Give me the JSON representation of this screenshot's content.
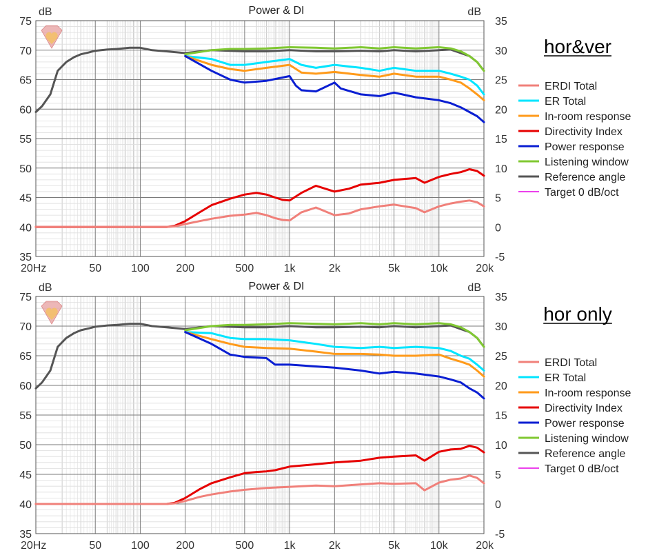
{
  "colors": {
    "ERDI Total": "#f0807a",
    "ER Total": "#00e5ff",
    "In-room response": "#ff9a1a",
    "Directivity Index": "#e60000",
    "Power response": "#0a1ed2",
    "Listening window": "#80c832",
    "Reference angle": "#555555",
    "Target 0 dB/oct": "#e600e6",
    "grid_major": "#7a7a7a",
    "grid_minor": "#cccccc",
    "underline": "#000000",
    "logo": "#e8a0a0"
  },
  "icons": {
    "logo": "heart-diamond-logo-icon"
  },
  "chart_data": [
    {
      "type": "line",
      "title": "Power & DI",
      "panel_label": "hor&ver",
      "y_unit_left": "dB",
      "y_unit_right": "dB",
      "xscale": "log",
      "xlim": [
        20,
        20000
      ],
      "ylim_left": [
        35,
        75
      ],
      "ylim_right": [
        -5,
        35
      ],
      "x_tick_labels": [
        "20Hz",
        "50",
        "100",
        "200",
        "500",
        "1k",
        "2k",
        "5k",
        "10k",
        "20k"
      ],
      "x_tick_values": [
        20,
        50,
        100,
        200,
        500,
        1000,
        2000,
        5000,
        10000,
        20000
      ],
      "y_left_ticks": [
        35,
        40,
        45,
        50,
        55,
        60,
        65,
        70,
        75
      ],
      "y_right_ticks": [
        -5,
        0,
        5,
        10,
        15,
        20,
        25,
        30,
        35
      ],
      "grid": true,
      "legend_position": "right",
      "legend": [
        "ERDI Total",
        "ER Total",
        "In-room response",
        "Directivity Index",
        "Power response",
        "Listening window",
        "Reference angle",
        "Target 0 dB/oct"
      ],
      "series": [
        {
          "name": "Reference angle",
          "axis": "left",
          "x": [
            20,
            22,
            25,
            28,
            32,
            36,
            40,
            45,
            50,
            60,
            70,
            85,
            100,
            120,
            150,
            200,
            300,
            500,
            700,
            1000,
            1500,
            2000,
            3000,
            4000,
            5000,
            7000,
            10000,
            12000,
            14000,
            16000,
            18000,
            20000
          ],
          "y": [
            59.5,
            60.5,
            62.5,
            66.5,
            68,
            68.8,
            69.3,
            69.6,
            69.9,
            70.1,
            70.2,
            70.4,
            70.4,
            70,
            69.8,
            69.5,
            70,
            69.8,
            69.8,
            70,
            69.8,
            69.8,
            69.9,
            69.8,
            70,
            69.8,
            70,
            70.1,
            69.5,
            69,
            68,
            66.5
          ]
        },
        {
          "name": "Listening window",
          "axis": "left",
          "x": [
            200,
            300,
            400,
            500,
            700,
            1000,
            1500,
            2000,
            3000,
            4000,
            5000,
            7000,
            10000,
            12000,
            14000,
            16000,
            18000,
            20000
          ],
          "y": [
            69.3,
            70,
            70.2,
            70.2,
            70.3,
            70.5,
            70.4,
            70.3,
            70.5,
            70.3,
            70.5,
            70.3,
            70.5,
            70.3,
            69.8,
            69,
            68,
            66.5
          ]
        },
        {
          "name": "ER Total",
          "axis": "left",
          "x": [
            200,
            300,
            400,
            500,
            700,
            1000,
            1200,
            1500,
            2000,
            3000,
            4000,
            5000,
            7000,
            10000,
            12000,
            14000,
            16000,
            18000,
            20000
          ],
          "y": [
            69,
            68.5,
            67.5,
            67.5,
            68,
            68.5,
            67.5,
            67,
            67.5,
            67,
            66.5,
            67,
            66.5,
            66.5,
            66,
            65.5,
            65,
            64,
            62.5
          ]
        },
        {
          "name": "In-room response",
          "axis": "left",
          "x": [
            200,
            300,
            400,
            500,
            700,
            1000,
            1200,
            1500,
            2000,
            3000,
            4000,
            5000,
            7000,
            10000,
            12000,
            14000,
            16000,
            18000,
            20000
          ],
          "y": [
            69,
            67.5,
            66.8,
            66.5,
            67,
            67.5,
            66.2,
            66,
            66.3,
            65.8,
            65.5,
            66,
            65.5,
            65.5,
            65,
            64.5,
            63.5,
            62.5,
            61.5
          ]
        },
        {
          "name": "Power response",
          "axis": "left",
          "x": [
            200,
            300,
            400,
            500,
            700,
            1000,
            1100,
            1200,
            1500,
            2000,
            2200,
            3000,
            4000,
            5000,
            7000,
            10000,
            12000,
            14000,
            16000,
            18000,
            20000
          ],
          "y": [
            69,
            66.5,
            65,
            64.5,
            64.8,
            65.6,
            64,
            63.2,
            63,
            64.5,
            63.5,
            62.5,
            62.2,
            62.8,
            62,
            61.5,
            61,
            60.3,
            59.5,
            58.8,
            57.8
          ]
        },
        {
          "name": "Directivity Index",
          "axis": "right",
          "x": [
            20,
            50,
            100,
            150,
            170,
            200,
            250,
            300,
            400,
            500,
            600,
            700,
            800,
            900,
            1000,
            1200,
            1500,
            2000,
            2500,
            3000,
            4000,
            5000,
            7000,
            8000,
            10000,
            12000,
            14000,
            16000,
            18000,
            20000
          ],
          "y": [
            0,
            0,
            0,
            0,
            0.2,
            1,
            2.5,
            3.7,
            4.8,
            5.5,
            5.8,
            5.5,
            5,
            4.6,
            4.5,
            5.8,
            7,
            6,
            6.5,
            7.2,
            7.5,
            8,
            8.3,
            7.5,
            8.5,
            9,
            9.3,
            9.8,
            9.5,
            8.7
          ]
        },
        {
          "name": "ERDI Total",
          "axis": "right",
          "x": [
            20,
            50,
            100,
            150,
            170,
            200,
            250,
            300,
            400,
            500,
            600,
            700,
            800,
            900,
            1000,
            1200,
            1500,
            2000,
            2500,
            3000,
            4000,
            5000,
            7000,
            8000,
            10000,
            12000,
            14000,
            16000,
            18000,
            20000
          ],
          "y": [
            0,
            0,
            0,
            0,
            0.1,
            0.5,
            1,
            1.4,
            1.9,
            2.1,
            2.4,
            2.0,
            1.5,
            1.2,
            1.1,
            2.5,
            3.3,
            2,
            2.3,
            3,
            3.5,
            3.8,
            3.2,
            2.5,
            3.5,
            4,
            4.3,
            4.5,
            4.2,
            3.5
          ]
        },
        {
          "name": "Target 0 dB/oct",
          "axis": "left",
          "x": [],
          "y": []
        }
      ]
    },
    {
      "type": "line",
      "title": "Power & DI",
      "panel_label": "hor only",
      "y_unit_left": "dB",
      "y_unit_right": "dB",
      "xscale": "log",
      "xlim": [
        20,
        20000
      ],
      "ylim_left": [
        35,
        75
      ],
      "ylim_right": [
        -5,
        35
      ],
      "x_tick_labels": [
        "20Hz",
        "50",
        "100",
        "200",
        "500",
        "1k",
        "2k",
        "5k",
        "10k",
        "20k"
      ],
      "x_tick_values": [
        20,
        50,
        100,
        200,
        500,
        1000,
        2000,
        5000,
        10000,
        20000
      ],
      "y_left_ticks": [
        35,
        40,
        45,
        50,
        55,
        60,
        65,
        70,
        75
      ],
      "y_right_ticks": [
        -5,
        0,
        5,
        10,
        15,
        20,
        25,
        30,
        35
      ],
      "grid": true,
      "legend_position": "right",
      "legend": [
        "ERDI Total",
        "ER Total",
        "In-room response",
        "Directivity Index",
        "Power response",
        "Listening window",
        "Reference angle",
        "Target 0 dB/oct"
      ],
      "series": [
        {
          "name": "Reference angle",
          "axis": "left",
          "x": [
            20,
            22,
            25,
            28,
            32,
            36,
            40,
            45,
            50,
            60,
            70,
            85,
            100,
            120,
            150,
            200,
            300,
            500,
            700,
            1000,
            1500,
            2000,
            3000,
            4000,
            5000,
            7000,
            10000,
            12000,
            14000,
            16000,
            18000,
            20000
          ],
          "y": [
            59.5,
            60.5,
            62.5,
            66.5,
            68,
            68.8,
            69.3,
            69.6,
            69.9,
            70.1,
            70.2,
            70.4,
            70.4,
            70,
            69.8,
            69.5,
            70,
            69.8,
            69.8,
            70,
            69.8,
            69.8,
            69.9,
            69.8,
            70,
            69.8,
            70,
            70.1,
            69.5,
            69,
            68,
            66.5
          ]
        },
        {
          "name": "Listening window",
          "axis": "left",
          "x": [
            200,
            300,
            400,
            500,
            700,
            1000,
            1500,
            2000,
            3000,
            4000,
            5000,
            7000,
            10000,
            12000,
            14000,
            16000,
            18000,
            20000
          ],
          "y": [
            69.3,
            70,
            70.2,
            70.2,
            70.3,
            70.5,
            70.4,
            70.3,
            70.5,
            70.3,
            70.5,
            70.3,
            70.5,
            70.3,
            69.8,
            69,
            68,
            66.5
          ]
        },
        {
          "name": "ER Total",
          "axis": "left",
          "x": [
            200,
            300,
            400,
            500,
            700,
            1000,
            1500,
            2000,
            3000,
            4000,
            5000,
            7000,
            10000,
            12000,
            14000,
            16000,
            18000,
            20000
          ],
          "y": [
            69,
            68.8,
            68,
            67.8,
            67.8,
            67.6,
            67,
            66.5,
            66.3,
            66.5,
            66.3,
            66.5,
            66.3,
            65.8,
            65,
            64.5,
            63.5,
            62.5
          ]
        },
        {
          "name": "In-room response",
          "axis": "left",
          "x": [
            200,
            300,
            400,
            500,
            700,
            1000,
            1500,
            2000,
            3000,
            4000,
            5000,
            7000,
            10000,
            12000,
            14000,
            16000,
            18000,
            20000
          ],
          "y": [
            69,
            67.8,
            67,
            66.5,
            66.3,
            66.2,
            65.7,
            65.3,
            65.3,
            65.2,
            65,
            65,
            65.2,
            64.5,
            64,
            63.5,
            62.5,
            61.5
          ]
        },
        {
          "name": "Power response",
          "axis": "left",
          "x": [
            200,
            300,
            400,
            500,
            700,
            800,
            1000,
            1500,
            2000,
            3000,
            4000,
            5000,
            7000,
            10000,
            12000,
            14000,
            16000,
            18000,
            20000
          ],
          "y": [
            69,
            67,
            65.2,
            64.8,
            64.6,
            63.5,
            63.5,
            63.2,
            63,
            62.5,
            62,
            62.3,
            62,
            61.5,
            61,
            60.5,
            59.5,
            58.8,
            57.8
          ]
        },
        {
          "name": "Directivity Index",
          "axis": "right",
          "x": [
            20,
            50,
            100,
            150,
            170,
            200,
            250,
            300,
            400,
            500,
            600,
            700,
            800,
            1000,
            1500,
            2000,
            3000,
            4000,
            5000,
            7000,
            8000,
            10000,
            12000,
            14000,
            16000,
            18000,
            20000
          ],
          "y": [
            0,
            0,
            0,
            0,
            0.2,
            1,
            2.5,
            3.5,
            4.5,
            5.2,
            5.4,
            5.5,
            5.7,
            6.3,
            6.7,
            7,
            7.3,
            7.8,
            8,
            8.2,
            7.3,
            8.8,
            9.2,
            9.3,
            9.8,
            9.5,
            8.7
          ]
        },
        {
          "name": "ERDI Total",
          "axis": "right",
          "x": [
            20,
            50,
            100,
            150,
            170,
            200,
            250,
            300,
            400,
            500,
            700,
            1000,
            1500,
            2000,
            3000,
            4000,
            5000,
            7000,
            8000,
            10000,
            12000,
            14000,
            16000,
            18000,
            20000
          ],
          "y": [
            0,
            0,
            0,
            0,
            0.1,
            0.5,
            1.2,
            1.6,
            2.1,
            2.4,
            2.7,
            2.9,
            3.1,
            3,
            3.3,
            3.5,
            3.4,
            3.5,
            2.3,
            3.6,
            4.1,
            4.3,
            4.8,
            4.4,
            3.5
          ]
        },
        {
          "name": "Target 0 dB/oct",
          "axis": "left",
          "x": [],
          "y": []
        }
      ]
    }
  ]
}
